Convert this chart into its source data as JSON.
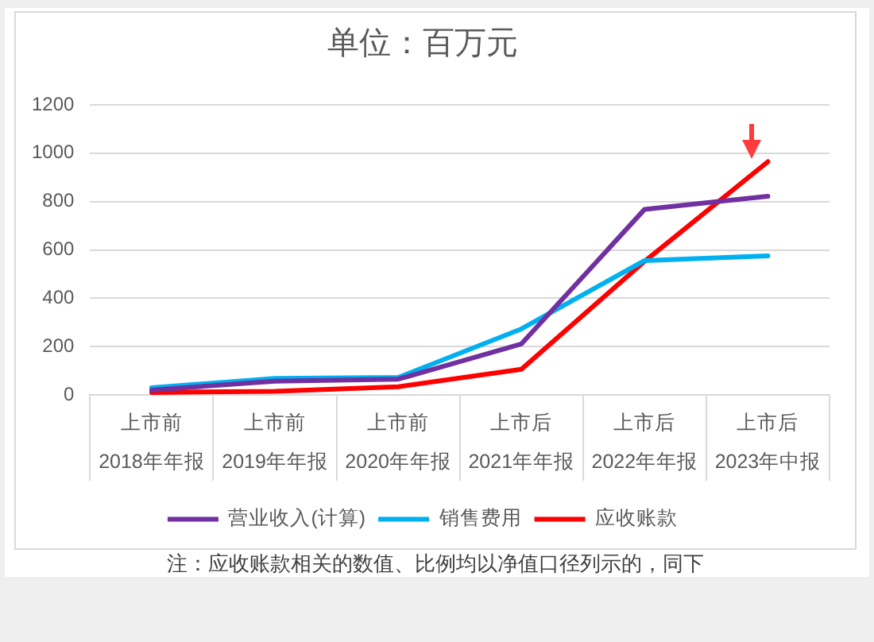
{
  "chart_data": {
    "type": "line",
    "title": "单位：百万元",
    "categories": [
      "上市前\n2018年年报",
      "上市前\n2019年年报",
      "上市前\n2020年年报",
      "上市后\n2021年年报",
      "上市后\n2022年年报",
      "上市后\n2023年中报"
    ],
    "series": [
      {
        "name": "营业收入(计算)",
        "color": "#7030a0",
        "values": [
          20,
          57,
          65,
          211,
          768,
          822
        ]
      },
      {
        "name": "销售费用",
        "color": "#00b0f0",
        "values": [
          30,
          68,
          72,
          273,
          556,
          575
        ]
      },
      {
        "name": "应收账款",
        "color": "#ff0000",
        "values": [
          10,
          15,
          34,
          106,
          553,
          965
        ]
      }
    ],
    "ylim": [
      0,
      1200
    ],
    "yticks": [
      0,
      200,
      400,
      600,
      800,
      1000,
      1200
    ],
    "grid": "y",
    "legend": "bottom",
    "marker": "none",
    "line_style": "solid",
    "annotations": [
      "注：应收账款相关的数值、比例均以净值口径列示的，同下"
    ]
  }
}
